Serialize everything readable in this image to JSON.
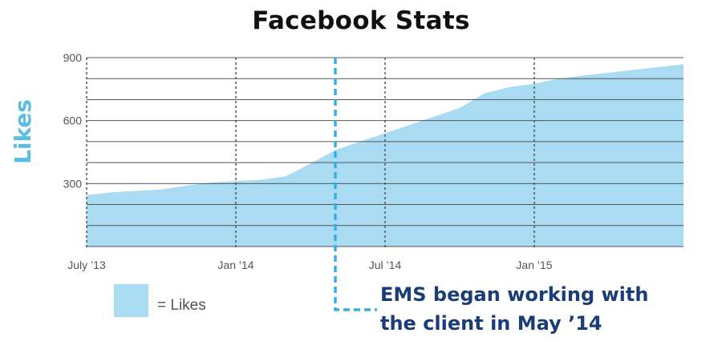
{
  "colors": {
    "area_fill": "#a9dbf2",
    "grid_line": "#555555",
    "marker_line": "#3aaee0",
    "title": "#111111",
    "ylabel": "#5bbde6",
    "annotation": "#1a3c78",
    "tick_label": "#555555"
  },
  "legend": {
    "label": "= Likes"
  },
  "annotation": {
    "line1": "EMS began working with",
    "line2": "the client in May ’14"
  },
  "chart_data": {
    "type": "area",
    "title": "Facebook Stats",
    "xlabel": "",
    "ylabel": "Likes",
    "ylim": [
      0,
      900
    ],
    "yticks": [
      300,
      600,
      900
    ],
    "grid": "horizontal solid lines every 100, dotted vertical lines at x ticks",
    "legend_position": "bottom-left",
    "x_ticks": [
      {
        "label": "July ’13",
        "date": "2013-07"
      },
      {
        "label": "Jan ’14",
        "date": "2014-01"
      },
      {
        "label": "Jul ’14",
        "date": "2014-07"
      },
      {
        "label": "Jan ’15",
        "date": "2015-01"
      }
    ],
    "marker": {
      "date": "2014-05"
    },
    "series": [
      {
        "name": "Likes",
        "points": [
          {
            "x": "2013-07",
            "y": 245
          },
          {
            "x": "2013-08",
            "y": 258
          },
          {
            "x": "2013-09",
            "y": 265
          },
          {
            "x": "2013-10",
            "y": 272
          },
          {
            "x": "2013-11",
            "y": 290
          },
          {
            "x": "2013-12",
            "y": 305
          },
          {
            "x": "2014-01",
            "y": 312
          },
          {
            "x": "2014-02",
            "y": 318
          },
          {
            "x": "2014-03",
            "y": 335
          },
          {
            "x": "2014-04",
            "y": 395
          },
          {
            "x": "2014-05",
            "y": 460
          },
          {
            "x": "2014-06",
            "y": 500
          },
          {
            "x": "2014-07",
            "y": 540
          },
          {
            "x": "2014-08",
            "y": 580
          },
          {
            "x": "2014-09",
            "y": 620
          },
          {
            "x": "2014-10",
            "y": 660
          },
          {
            "x": "2014-11",
            "y": 730
          },
          {
            "x": "2014-12",
            "y": 760
          },
          {
            "x": "2015-01",
            "y": 775
          },
          {
            "x": "2015-02",
            "y": 800
          },
          {
            "x": "2015-03",
            "y": 815
          },
          {
            "x": "2015-04",
            "y": 828
          },
          {
            "x": "2015-05",
            "y": 842
          },
          {
            "x": "2015-06",
            "y": 855
          },
          {
            "x": "2015-07",
            "y": 868
          }
        ]
      }
    ]
  }
}
